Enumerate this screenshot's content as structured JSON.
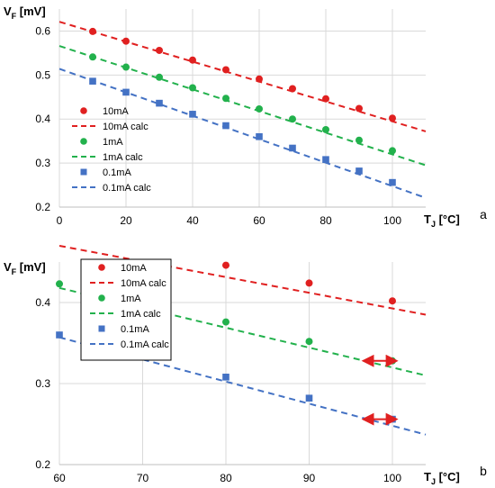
{
  "chart_data": [
    {
      "type": "scatter",
      "panel_label": "a",
      "ylabel_main": "V",
      "ylabel_sub": "F",
      "ylabel_unit": " [mV]",
      "xlabel_main": "T",
      "xlabel_sub": "J",
      "xlabel_unit": " [°C]",
      "xlim": [
        0,
        110
      ],
      "ylim": [
        0.2,
        0.65
      ],
      "xticks": [
        0,
        20,
        40,
        60,
        80,
        100
      ],
      "yticks": [
        0.2,
        0.3,
        0.4,
        0.5,
        0.6
      ],
      "ytick_labels": [
        "0.2",
        "0.3",
        "0.4",
        "0.5",
        "0.6"
      ],
      "legend_position": "center",
      "series": [
        {
          "name": "10mA",
          "kind": "points",
          "marker": "circle",
          "color": "#e02020",
          "x": [
            10,
            20,
            30,
            40,
            50,
            60,
            70,
            80,
            90,
            100
          ],
          "y": [
            0.599,
            0.577,
            0.556,
            0.534,
            0.512,
            0.491,
            0.469,
            0.446,
            0.424,
            0.402
          ]
        },
        {
          "name": "10mA calc",
          "kind": "dashed-line",
          "color": "#e02020",
          "x": [
            0,
            110
          ],
          "y": [
            0.621,
            0.372
          ]
        },
        {
          "name": "1mA",
          "kind": "points",
          "marker": "circle",
          "color": "#22b14c",
          "x": [
            10,
            20,
            30,
            40,
            50,
            60,
            70,
            80,
            90,
            100
          ],
          "y": [
            0.541,
            0.518,
            0.495,
            0.471,
            0.447,
            0.423,
            0.4,
            0.376,
            0.352,
            0.328
          ]
        },
        {
          "name": "1mA calc",
          "kind": "dashed-line",
          "color": "#22b14c",
          "x": [
            0,
            110
          ],
          "y": [
            0.566,
            0.295
          ]
        },
        {
          "name": "0.1mA",
          "kind": "points",
          "marker": "square",
          "color": "#4472c4",
          "x": [
            10,
            20,
            30,
            40,
            50,
            60,
            70,
            80,
            90,
            100
          ],
          "y": [
            0.486,
            0.461,
            0.436,
            0.411,
            0.385,
            0.36,
            0.334,
            0.308,
            0.282,
            0.256
          ]
        },
        {
          "name": "0.1mA calc",
          "kind": "dashed-line",
          "color": "#4472c4",
          "x": [
            0,
            110
          ],
          "y": [
            0.514,
            0.221
          ]
        }
      ]
    },
    {
      "type": "scatter",
      "panel_label": "b",
      "ylabel_main": "V",
      "ylabel_sub": "F",
      "ylabel_unit": " [mV]",
      "xlabel_main": "T",
      "xlabel_sub": "J",
      "xlabel_unit": " [°C]",
      "xlim": [
        60,
        104
      ],
      "ylim": [
        0.2,
        0.45
      ],
      "xticks": [
        60,
        70,
        80,
        90,
        100
      ],
      "yticks": [
        0.2,
        0.3,
        0.4
      ],
      "ytick_labels": [
        "0.2",
        "0.3",
        "0.4"
      ],
      "legend_position": "top-left",
      "series": [
        {
          "name": "10mA",
          "kind": "points",
          "marker": "circle",
          "color": "#e02020",
          "x": [
            80,
            90,
            100
          ],
          "y": [
            0.446,
            0.424,
            0.402
          ]
        },
        {
          "name": "10mA calc",
          "kind": "dashed-line",
          "color": "#e02020",
          "x": [
            60,
            104
          ],
          "y": [
            0.47,
            0.385
          ]
        },
        {
          "name": "1mA",
          "kind": "points",
          "marker": "circle",
          "color": "#22b14c",
          "x": [
            60,
            80,
            90,
            100
          ],
          "y": [
            0.423,
            0.376,
            0.352,
            0.328
          ]
        },
        {
          "name": "1mA calc",
          "kind": "dashed-line",
          "color": "#22b14c",
          "x": [
            60,
            104
          ],
          "y": [
            0.418,
            0.31
          ]
        },
        {
          "name": "0.1mA",
          "kind": "points",
          "marker": "square",
          "color": "#4472c4",
          "x": [
            60,
            80,
            90,
            100
          ],
          "y": [
            0.36,
            0.308,
            0.282,
            0.256
          ]
        },
        {
          "name": "0.1mA calc",
          "kind": "dashed-line",
          "color": "#4472c4",
          "x": [
            60,
            104
          ],
          "y": [
            0.357,
            0.237
          ]
        }
      ],
      "annotations": [
        {
          "kind": "double-arrow",
          "color": "#e02020",
          "x": [
            96.5,
            100.5
          ],
          "y": 0.328
        },
        {
          "kind": "double-arrow",
          "color": "#e02020",
          "x": [
            96.5,
            100.5
          ],
          "y": 0.256
        }
      ]
    }
  ]
}
